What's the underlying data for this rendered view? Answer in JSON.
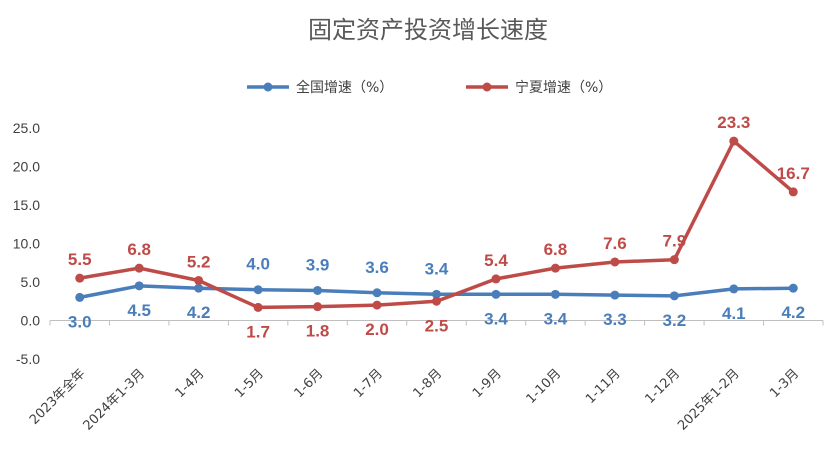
{
  "chart_data": {
    "type": "line",
    "title": "固定资产投资增长速度",
    "categories": [
      "2023年全年",
      "2024年1-3月",
      "1-4月",
      "1-5月",
      "1-6月",
      "1-7月",
      "1-8月",
      "1-9月",
      "1-10月",
      "1-11月",
      "1-12月",
      "2025年1-2月",
      "1-3月"
    ],
    "series": [
      {
        "name": "全国增速（%）",
        "color": "#4A7EBB",
        "values": [
          3.0,
          4.5,
          4.2,
          4.0,
          3.9,
          3.6,
          3.4,
          3.4,
          3.4,
          3.3,
          3.2,
          4.1,
          4.2
        ],
        "labels": [
          "3.0",
          "4.5",
          "4.2",
          "4.0",
          "3.9",
          "3.6",
          "3.4",
          "3.4",
          "3.4",
          "3.3",
          "3.2",
          "4.1",
          "4.2"
        ]
      },
      {
        "name": "宁夏增速（%）",
        "color": "#BE4B48",
        "values": [
          5.5,
          6.8,
          5.2,
          1.7,
          1.8,
          2.0,
          2.5,
          5.4,
          6.8,
          7.6,
          7.9,
          23.3,
          16.7
        ],
        "labels": [
          "5.5",
          "6.8",
          "5.2",
          "1.7",
          "1.8",
          "2.0",
          "2.5",
          "5.4",
          "6.8",
          "7.6",
          "7.9",
          "23.3",
          "16.7"
        ]
      }
    ],
    "ylim": [
      -5.0,
      25.0
    ],
    "yticks": [
      "-5.0",
      "0.0",
      "5.0",
      "10.0",
      "15.0",
      "20.0",
      "25.0"
    ],
    "grid": false,
    "legend": "top-center"
  }
}
